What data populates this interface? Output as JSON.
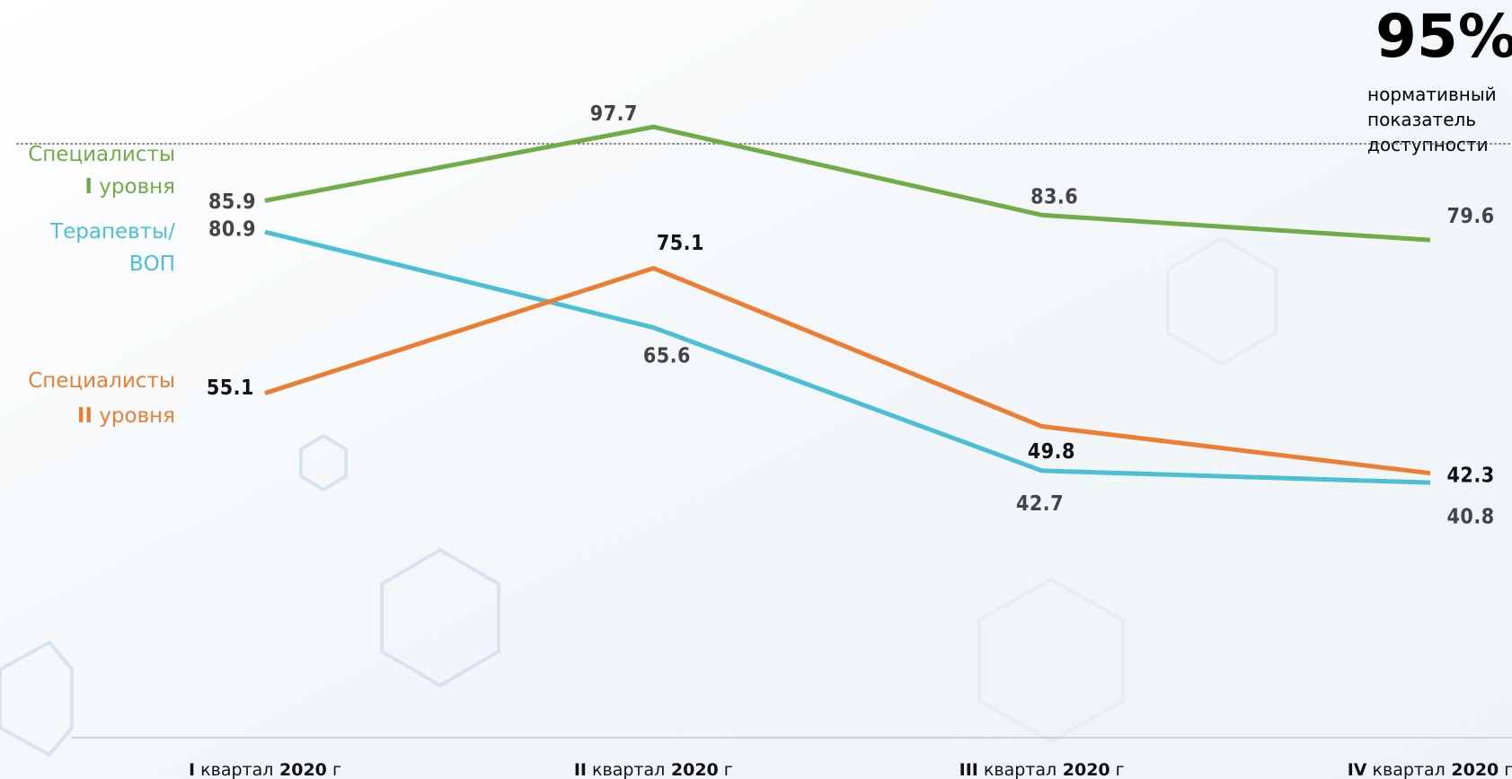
{
  "chart_data": {
    "type": "line",
    "categories": [
      "I квартал 2020 г",
      "II квартал 2020 г",
      "III квартал 2020 г",
      "IV квартал 2020 г"
    ],
    "series": [
      {
        "name": "Специалисты I уровня",
        "color": "#70ad47",
        "values": [
          85.9,
          97.7,
          83.6,
          79.6
        ]
      },
      {
        "name": "Терапевты/ ВОП",
        "color": "#4bbfd6",
        "values": [
          80.9,
          65.6,
          42.7,
          40.8
        ]
      },
      {
        "name": "Специалисты II уровня",
        "color": "#ed7d31",
        "values": [
          55.1,
          75.1,
          49.8,
          42.3
        ]
      }
    ],
    "target": {
      "value": 95,
      "label": "95%",
      "text": "нормативный показатель доступности"
    },
    "ylim": [
      0,
      118
    ],
    "grid": false
  }
}
